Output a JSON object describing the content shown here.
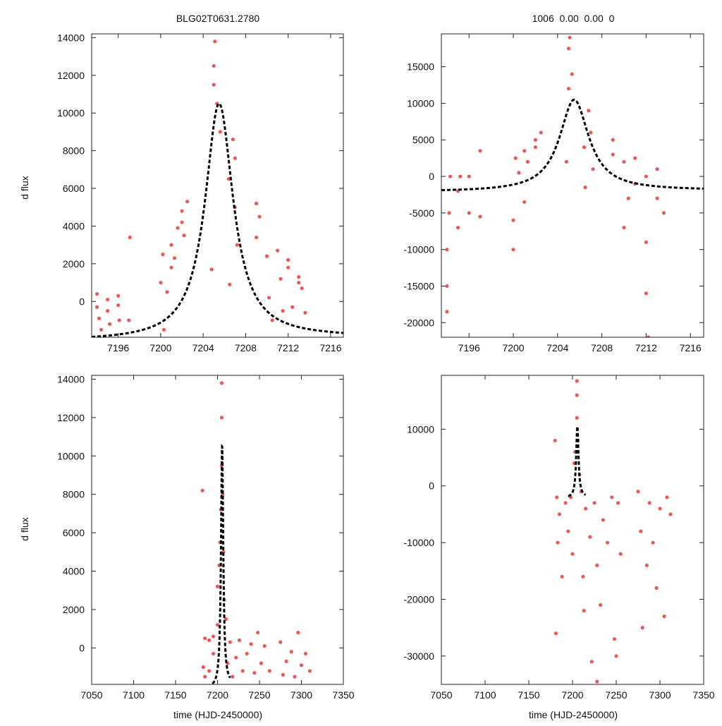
{
  "titles": {
    "left": "BLG02T0631.2780",
    "right": "1006  0.00  0.00  0"
  },
  "ylabel": "d flux",
  "xlabel": "time (HJD-2450000)",
  "colors": {
    "points": "#e85a5a",
    "model": "#000000",
    "frame": "#222222"
  },
  "model": {
    "peak_time": 7205.5,
    "peak_flux": 10500,
    "left_base": -2100,
    "right_base": -1900
  },
  "chart_data": [
    {
      "id": "top-left",
      "type": "scatter",
      "title": "BLG02T0631.2780",
      "xlabel": "",
      "ylabel": "d flux",
      "xlim": [
        7193.5,
        7217.2
      ],
      "ylim": [
        -1900,
        14200
      ],
      "xticks": [
        7196,
        7200,
        7204,
        7208,
        7212,
        7216
      ],
      "yticks": [
        0,
        2000,
        4000,
        6000,
        8000,
        10000,
        12000,
        14000
      ],
      "series": [
        {
          "name": "observations",
          "points": [
            [
              7194,
              -300
            ],
            [
              7194,
              400
            ],
            [
              7194.2,
              -900
            ],
            [
              7194.4,
              -1500
            ],
            [
              7195,
              -500
            ],
            [
              7195,
              100
            ],
            [
              7195.2,
              -1200
            ],
            [
              7196,
              -200
            ],
            [
              7196,
              300
            ],
            [
              7196.1,
              -1000
            ],
            [
              7197,
              -1000
            ],
            [
              7197.1,
              3400
            ],
            [
              7200,
              1000
            ],
            [
              7200.2,
              2500
            ],
            [
              7200.3,
              -1500
            ],
            [
              7200.6,
              500
            ],
            [
              7201,
              1800
            ],
            [
              7201,
              3000
            ],
            [
              7201.3,
              2300
            ],
            [
              7201.6,
              3900
            ],
            [
              7202,
              4200
            ],
            [
              7202,
              4800
            ],
            [
              7202.2,
              3500
            ],
            [
              7202.5,
              5300
            ],
            [
              7204.8,
              1700
            ],
            [
              7205,
              11500
            ],
            [
              7205,
              12500
            ],
            [
              7205.1,
              13800
            ],
            [
              7205.3,
              10500
            ],
            [
              7205.6,
              9000
            ],
            [
              7206.4,
              6500
            ],
            [
              7206.5,
              900
            ],
            [
              7206.8,
              8600
            ],
            [
              7207,
              7600
            ],
            [
              7207,
              5000
            ],
            [
              7207.2,
              3000
            ],
            [
              7209,
              3400
            ],
            [
              7209,
              5200
            ],
            [
              7209.3,
              4500
            ],
            [
              7210,
              2400
            ],
            [
              7210.2,
              200
            ],
            [
              7210.5,
              -1000
            ],
            [
              7211,
              2700
            ],
            [
              7211.3,
              1200
            ],
            [
              7211.5,
              -500
            ],
            [
              7212,
              1800
            ],
            [
              7212,
              2200
            ],
            [
              7212.4,
              -300
            ],
            [
              7213,
              1000
            ],
            [
              7213,
              1300
            ],
            [
              7213.3,
              700
            ],
            [
              7213.6,
              -600
            ]
          ]
        }
      ],
      "model_range": [
        7193.5,
        7217.2
      ]
    },
    {
      "id": "top-right",
      "type": "scatter",
      "title": "1006  0.00  0.00  0",
      "xlabel": "",
      "ylabel": "",
      "xlim": [
        7193.5,
        7217.2
      ],
      "ylim": [
        -22000,
        19500
      ],
      "xticks": [
        7196,
        7200,
        7204,
        7208,
        7212,
        7216
      ],
      "yticks": [
        -20000,
        -15000,
        -10000,
        -5000,
        0,
        5000,
        10000,
        15000
      ],
      "series": [
        {
          "name": "observations",
          "points": [
            [
              7194,
              -18500
            ],
            [
              7194,
              -15000
            ],
            [
              7194,
              -10000
            ],
            [
              7194.2,
              -5000
            ],
            [
              7194.3,
              0
            ],
            [
              7195,
              -7000
            ],
            [
              7195,
              -2000
            ],
            [
              7195.2,
              0
            ],
            [
              7196,
              -5000
            ],
            [
              7196,
              0
            ],
            [
              7197,
              -5500
            ],
            [
              7197,
              3500
            ],
            [
              7200,
              -10000
            ],
            [
              7200,
              -6000
            ],
            [
              7200.2,
              2500
            ],
            [
              7200.5,
              500
            ],
            [
              7201,
              3500
            ],
            [
              7201,
              -3500
            ],
            [
              7201.3,
              2000
            ],
            [
              7202,
              5000
            ],
            [
              7202,
              4000
            ],
            [
              7202.5,
              6000
            ],
            [
              7204.8,
              2000
            ],
            [
              7205,
              12000
            ],
            [
              7205,
              17500
            ],
            [
              7205.1,
              19000
            ],
            [
              7205.3,
              14000
            ],
            [
              7206.4,
              4000
            ],
            [
              7206.5,
              -1500
            ],
            [
              7206.8,
              9000
            ],
            [
              7207,
              6000
            ],
            [
              7207.2,
              1000
            ],
            [
              7209,
              3000
            ],
            [
              7209,
              5000
            ],
            [
              7210,
              -7000
            ],
            [
              7210,
              2000
            ],
            [
              7210.4,
              -3000
            ],
            [
              7211,
              2500
            ],
            [
              7211,
              -1000
            ],
            [
              7212,
              -9000
            ],
            [
              7212,
              -16000
            ],
            [
              7212,
              0
            ],
            [
              7213,
              1000
            ],
            [
              7213,
              -3000
            ],
            [
              7213.6,
              -5000
            ],
            [
              7212.2,
              -22000
            ]
          ]
        }
      ],
      "model_range": [
        7193.5,
        7217.2
      ]
    },
    {
      "id": "bottom-left",
      "type": "scatter",
      "title": "",
      "xlabel": "time (HJD-2450000)",
      "ylabel": "d flux",
      "xlim": [
        7050,
        7350
      ],
      "ylim": [
        -1900,
        14200
      ],
      "xticks": [
        7050,
        7100,
        7150,
        7200,
        7250,
        7300,
        7350
      ],
      "yticks": [
        0,
        2000,
        4000,
        6000,
        8000,
        10000,
        12000,
        14000
      ],
      "series": [
        {
          "name": "observations",
          "points": [
            [
              7182,
              8200
            ],
            [
              7183,
              -1000
            ],
            [
              7185,
              500
            ],
            [
              7185,
              -1500
            ],
            [
              7190,
              400
            ],
            [
              7190,
              -1200
            ],
            [
              7195,
              -300
            ],
            [
              7195,
              600
            ],
            [
              7200,
              1200
            ],
            [
              7200,
              3200
            ],
            [
              7202,
              4300
            ],
            [
              7203,
              5500
            ],
            [
              7204,
              7200
            ],
            [
              7205,
              9500
            ],
            [
              7205,
              12000
            ],
            [
              7205,
              13800
            ],
            [
              7206,
              8000
            ],
            [
              7207,
              5000
            ],
            [
              7208,
              2500
            ],
            [
              7210,
              1500
            ],
            [
              7212,
              -800
            ],
            [
              7215,
              300
            ],
            [
              7218,
              -1500
            ],
            [
              7222,
              -500
            ],
            [
              7226,
              400
            ],
            [
              7230,
              -1200
            ],
            [
              7235,
              -300
            ],
            [
              7240,
              200
            ],
            [
              7244,
              -1300
            ],
            [
              7248,
              800
            ],
            [
              7252,
              -800
            ],
            [
              7256,
              100
            ],
            [
              7262,
              -1200
            ],
            [
              7275,
              300
            ],
            [
              7278,
              -1400
            ],
            [
              7282,
              -700
            ],
            [
              7288,
              -200
            ],
            [
              7292,
              -1500
            ],
            [
              7296,
              800
            ],
            [
              7300,
              -900
            ],
            [
              7305,
              -300
            ],
            [
              7310,
              -1200
            ]
          ]
        }
      ],
      "model_range": [
        7188,
        7215
      ]
    },
    {
      "id": "bottom-right",
      "type": "scatter",
      "title": "",
      "xlabel": "time (HJD-2450000)",
      "ylabel": "",
      "xlim": [
        7050,
        7350
      ],
      "ylim": [
        -35000,
        19500
      ],
      "xticks": [
        7050,
        7100,
        7150,
        7200,
        7250,
        7300,
        7350
      ],
      "yticks": [
        -30000,
        -20000,
        -10000,
        0,
        10000
      ],
      "series": [
        {
          "name": "observations",
          "points": [
            [
              7180,
              8000
            ],
            [
              7181,
              -26000
            ],
            [
              7182,
              -2000
            ],
            [
              7183,
              -10000
            ],
            [
              7185,
              -5000
            ],
            [
              7188,
              -16000
            ],
            [
              7192,
              -3000
            ],
            [
              7195,
              -8000
            ],
            [
              7198,
              -2000
            ],
            [
              7200,
              -12000
            ],
            [
              7202,
              4000
            ],
            [
              7203,
              6000
            ],
            [
              7205,
              12000
            ],
            [
              7205,
              16000
            ],
            [
              7205,
              18500
            ],
            [
              7206,
              8000
            ],
            [
              7208,
              2000
            ],
            [
              7210,
              -1000
            ],
            [
              7212,
              -16000
            ],
            [
              7213,
              -22000
            ],
            [
              7215,
              -4000
            ],
            [
              7220,
              -9000
            ],
            [
              7222,
              -31000
            ],
            [
              7225,
              -3000
            ],
            [
              7228,
              -14000
            ],
            [
              7228,
              -34500
            ],
            [
              7232,
              -21000
            ],
            [
              7235,
              -6000
            ],
            [
              7240,
              -10000
            ],
            [
              7245,
              -2000
            ],
            [
              7248,
              -27000
            ],
            [
              7250,
              -30000
            ],
            [
              7252,
              -3000
            ],
            [
              7255,
              -12000
            ],
            [
              7275,
              -1000
            ],
            [
              7278,
              -8000
            ],
            [
              7280,
              -25000
            ],
            [
              7285,
              -14000
            ],
            [
              7288,
              -3000
            ],
            [
              7292,
              -10000
            ],
            [
              7296,
              -18000
            ],
            [
              7300,
              -4000
            ],
            [
              7305,
              -23000
            ],
            [
              7308,
              -2000
            ],
            [
              7312,
              -5000
            ]
          ]
        }
      ],
      "model_range": [
        7195,
        7215
      ]
    }
  ]
}
